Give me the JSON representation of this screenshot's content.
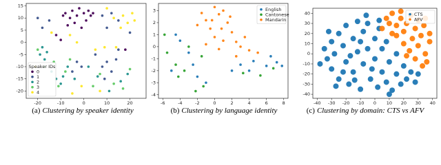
{
  "chart_data": [
    {
      "type": "scatter",
      "label": "(a)",
      "caption": "Clustering by speaker identity",
      "xlim": [
        -25,
        27
      ],
      "xticks": [
        -20,
        -10,
        0,
        10,
        20
      ],
      "ylim": [
        -23,
        16
      ],
      "yticks": [
        -20,
        -15,
        -10,
        -5,
        0,
        5,
        10,
        15
      ],
      "legend": "lower left",
      "legend_title": "Speaker IDs",
      "marker_radius": 1.8,
      "series": [
        {
          "name": "0",
          "color": "#440154",
          "x": [
            -8,
            -5,
            -3,
            -6,
            -2,
            0,
            2,
            -4,
            1,
            -7,
            3,
            -1,
            4,
            -9,
            -12,
            -10,
            18
          ],
          "values": [
            12,
            13,
            11,
            10,
            14,
            12,
            13,
            8,
            9,
            7,
            11,
            6,
            12,
            11,
            3,
            1,
            -3
          ]
        },
        {
          "name": "1",
          "color": "#3b528b",
          "x": [
            -20,
            -15,
            -18,
            8,
            12,
            10,
            15,
            5,
            10,
            12,
            8,
            14,
            20,
            -3,
            -5,
            -1,
            9,
            15
          ],
          "values": [
            10,
            9,
            6,
            11,
            12,
            6,
            9,
            -5,
            -8,
            -12,
            -10,
            -7,
            4,
            -8,
            -12,
            -10,
            -15,
            -3
          ]
        },
        {
          "name": "2",
          "color": "#21918c",
          "x": [
            -18,
            -16,
            -19,
            -17,
            -14,
            -12,
            -9,
            -10,
            -7,
            6,
            11,
            16,
            19,
            -4,
            2
          ],
          "values": [
            -2,
            -4,
            -5,
            -7,
            -12,
            -15,
            -14,
            -17,
            -10,
            -14,
            -20,
            -16,
            -13,
            -15,
            -10
          ]
        },
        {
          "name": "3",
          "color": "#5ec962",
          "x": [
            -20,
            -17,
            -13,
            -8,
            -11,
            7,
            13,
            20,
            4,
            -6,
            17
          ],
          "values": [
            -3,
            -10,
            -8,
            -12,
            -18,
            -13,
            -17,
            -11,
            -18,
            -7,
            -19
          ]
        },
        {
          "name": "4",
          "color": "#fde725",
          "x": [
            10,
            13,
            17,
            19,
            22,
            16,
            21,
            -14,
            -6,
            -3,
            5,
            9,
            14,
            7,
            -1,
            -21,
            -5
          ],
          "values": [
            14,
            10,
            11,
            8,
            9,
            6,
            12,
            4,
            3,
            0,
            -3,
            -2,
            -2,
            -20,
            -18,
            -10,
            -21
          ]
        }
      ]
    },
    {
      "type": "scatter",
      "label": "(b)",
      "caption": "Clustering by language identity",
      "xlim": [
        -6.5,
        8.5
      ],
      "xticks": [
        -6,
        -4,
        -2,
        0,
        2,
        4,
        6,
        8
      ],
      "ylim": [
        -4.3,
        3.6
      ],
      "yticks": [
        -4,
        -3,
        -2,
        -1,
        0,
        1,
        2,
        3
      ],
      "legend": "upper right",
      "marker_radius": 1.8,
      "series": [
        {
          "name": "English",
          "color": "#1f77b4",
          "x": [
            -4.5,
            -4,
            -3,
            -2.5,
            -2,
            -5,
            -1,
            2,
            3,
            4.5,
            6,
            7.2,
            7.8,
            4,
            6.5
          ],
          "values": [
            1,
            0.5,
            -0.5,
            -1.5,
            -2.5,
            -2,
            -3,
            -2,
            -1.5,
            -1.2,
            -1.6,
            -1.3,
            -1.6,
            -2,
            -0.8
          ]
        },
        {
          "name": "Cantonese",
          "color": "#2ca02c",
          "x": [
            -5.8,
            -4.2,
            -5.5,
            -3.5,
            -2.2,
            -1.3,
            -3,
            3.3,
            5.3,
            6.8,
            -4.5,
            -1.5
          ],
          "values": [
            1,
            -2.5,
            -0.5,
            -2,
            -3.7,
            -3.3,
            0,
            -2.2,
            -2.4,
            -1.8,
            -1.5,
            -0.8
          ]
        },
        {
          "name": "Mandarin",
          "color": "#ff7f0e",
          "x": [
            -1.5,
            -1,
            0,
            0.5,
            1,
            -0.5,
            1.5,
            2,
            0,
            1,
            -1,
            0.5,
            2.5,
            3,
            4,
            5,
            1.8,
            -2,
            2.5,
            3.5,
            0.8,
            -0.3
          ],
          "values": [
            2.8,
            2.2,
            3.3,
            2.7,
            3,
            1.5,
            2,
            1.2,
            0.8,
            0.5,
            0.2,
            -0.2,
            0.4,
            0,
            -0.3,
            -0.5,
            2.5,
            1.8,
            -0.8,
            0.8,
            1.5,
            2.2
          ]
        }
      ]
    },
    {
      "type": "scatter",
      "label": "(c)",
      "caption": "Clustering by domain: CTS vs AFV",
      "xlim": [
        -43,
        43
      ],
      "xticks": [
        -40,
        -30,
        -20,
        -10,
        0,
        10,
        20,
        30,
        40
      ],
      "ylim": [
        -44,
        45
      ],
      "yticks": [
        -40,
        -30,
        -20,
        -10,
        0,
        10,
        20,
        30,
        40
      ],
      "legend": "upper right",
      "marker_radius": 4,
      "series": [
        {
          "name": "CTS",
          "color": "#1f77b4",
          "x": [
            -35,
            -33,
            -30,
            -30,
            -28,
            -25,
            -25,
            -22,
            -20,
            -20,
            -18,
            -15,
            -15,
            -12,
            -12,
            -10,
            -8,
            -8,
            -5,
            -5,
            -3,
            0,
            0,
            2,
            3,
            5,
            5,
            8,
            10,
            12,
            15,
            18,
            20,
            22,
            25,
            28,
            -32,
            -27,
            -17,
            -2,
            8,
            -10,
            -22,
            3,
            -6,
            10,
            30,
            -38,
            15,
            -14
          ],
          "values": [
            5,
            -5,
            12,
            -15,
            0,
            20,
            -25,
            8,
            -8,
            28,
            -30,
            15,
            -18,
            32,
            2,
            -35,
            22,
            -10,
            30,
            5,
            -25,
            15,
            -5,
            -33,
            25,
            5,
            -18,
            -28,
            -8,
            -36,
            -20,
            -30,
            -12,
            -25,
            -18,
            -28,
            22,
            -32,
            -2,
            -15,
            12,
            12,
            -18,
            33,
            38,
            -40,
            -20,
            -10,
            0,
            -26
          ]
        },
        {
          "name": "AFV",
          "color": "#ff7f0e",
          "x": [
            5,
            8,
            10,
            12,
            15,
            18,
            20,
            22,
            25,
            26,
            28,
            30,
            32,
            34,
            35,
            36,
            38,
            33,
            20,
            24,
            15,
            28,
            30,
            38,
            12,
            22,
            18,
            35
          ],
          "values": [
            25,
            35,
            30,
            40,
            28,
            35,
            22,
            30,
            38,
            15,
            25,
            8,
            18,
            28,
            0,
            -8,
            12,
            -12,
            10,
            3,
            18,
            -5,
            33,
            20,
            20,
            -2,
            42,
            35
          ]
        }
      ]
    }
  ]
}
